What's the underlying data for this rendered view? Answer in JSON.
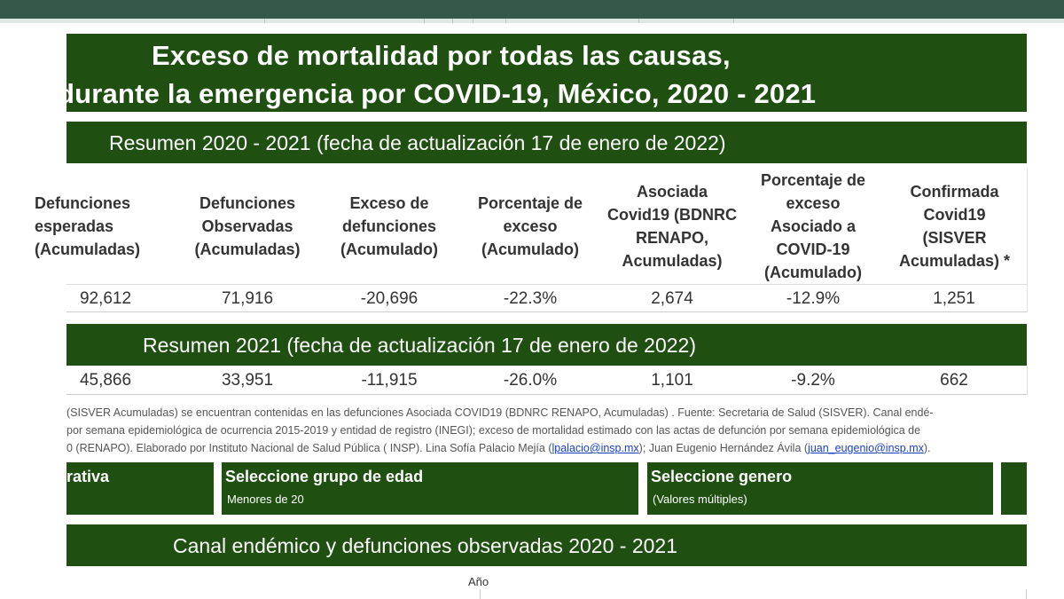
{
  "header": {
    "title_line1": "Exceso de mortalidad por todas las causas,",
    "title_line2": "durante la emergencia por COVID-19, México, 2020 - 2021"
  },
  "summary_all": {
    "banner": "Resumen 2020 - 2021  (fecha de actualización 17 de enero de 2022)",
    "columns": [
      "Defunciones\nesperadas\n(Acumuladas)",
      "Defunciones\nObservadas\n(Acumuladas)",
      "Exceso de\ndefunciones\n(Acumulado)",
      "Porcentaje de\nexceso\n(Acumulado)",
      "Asociada\nCovid19 (BDNRC\nRENAPO,\nAcumuladas)",
      "Porcentaje de\nexceso\nAsociado a\nCOVID-19\n(Acumulado)",
      "Confirmada\nCovid19\n(SISVER\nAcumuladas) *"
    ],
    "values": [
      "92,612",
      "71,916",
      "-20,696",
      "-22.3%",
      "2,674",
      "-12.9%",
      "1,251"
    ]
  },
  "summary_2021": {
    "banner": "Resumen 2021  (fecha de actualización 17 de enero de 2022)",
    "values": [
      "45,866",
      "33,951",
      "-11,915",
      "-26.0%",
      "1,101",
      "-9.2%",
      "662"
    ]
  },
  "footnote": {
    "line1": "(SISVER Acumuladas) se encuentran contenidas en las defunciones Asociada COVID19 (BDNRC RENAPO, Acumuladas) . Fuente: Secretaria de Salud (SISVER). Canal endé-",
    "line2": "por semana epidemiológica de ocurrencia 2015-2019 y entidad de registro (INEGI); exceso de mortalidad estimado con las actas de defunción por semana epidemiológica de",
    "line3_pre": "0 (RENAPO). Elaborado por Instituto Nacional de Salud Pública ( INSP). Lina Sofía Palacio Mejía (",
    "email1": "lpalacio@insp.mx",
    "line3_mid": "); Juan Eugenio Hernández Ávila (",
    "email2": "juan_eugenio@insp.mx",
    "line3_post": ")."
  },
  "filters": {
    "entity": {
      "title": "rativa",
      "value": ""
    },
    "age": {
      "title": "Seleccione grupo de edad",
      "value": "Menores de 20"
    },
    "gender": {
      "title": "Seleccione genero",
      "value": "(Valores múltiples)"
    }
  },
  "canal": {
    "banner": "Canal endémico y defunciones observadas 2020 - 2021",
    "axis_label": "Año"
  },
  "colors": {
    "banner_green": "#1f5011",
    "topbar": "#34594b",
    "link": "#1a3fc4"
  }
}
